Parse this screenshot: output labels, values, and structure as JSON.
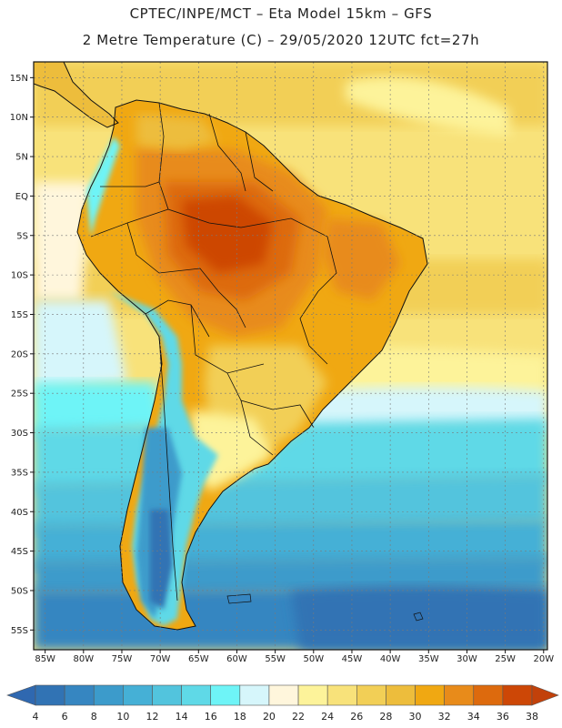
{
  "header": {
    "line1": "CPTEC/INPE/MCT –  Eta Model 15km – GFS",
    "line2": "2 Metre Temperature (C) – 29/05/2020 12UTC fct=27h"
  },
  "map": {
    "lat_labels": [
      "15N",
      "10N",
      "5N",
      "EQ",
      "5S",
      "10S",
      "15S",
      "20S",
      "25S",
      "30S",
      "35S",
      "40S",
      "45S",
      "50S",
      "55S"
    ],
    "lon_labels": [
      "85W",
      "80W",
      "75W",
      "70W",
      "65W",
      "60W",
      "55W",
      "50W",
      "45W",
      "40W",
      "35W",
      "30W",
      "25W",
      "20W"
    ],
    "lat_values": [
      15,
      10,
      5,
      0,
      -5,
      -10,
      -15,
      -20,
      -25,
      -30,
      -35,
      -40,
      -45,
      -50,
      -55
    ],
    "lon_values": [
      -85,
      -80,
      -75,
      -70,
      -65,
      -60,
      -55,
      -50,
      -45,
      -40,
      -35,
      -30,
      -25,
      -20
    ]
  },
  "colorbar": {
    "labels": [
      "4",
      "6",
      "8",
      "10",
      "12",
      "14",
      "16",
      "18",
      "20",
      "22",
      "24",
      "26",
      "28",
      "30",
      "32",
      "34",
      "36",
      "38"
    ],
    "colors": [
      "#3173b4",
      "#3686c1",
      "#3c9bcb",
      "#45b0d6",
      "#52c4dd",
      "#5fd9e7",
      "#6ef4f7",
      "#d6f6fb",
      "#fff6dc",
      "#fdf39a",
      "#f8e27a",
      "#f2cf56",
      "#edbd3c",
      "#f0a812",
      "#e88b1a",
      "#dd6a0d",
      "#cd4706"
    ],
    "under_color": "#2f68b0",
    "over_color": "#c2410a"
  }
}
